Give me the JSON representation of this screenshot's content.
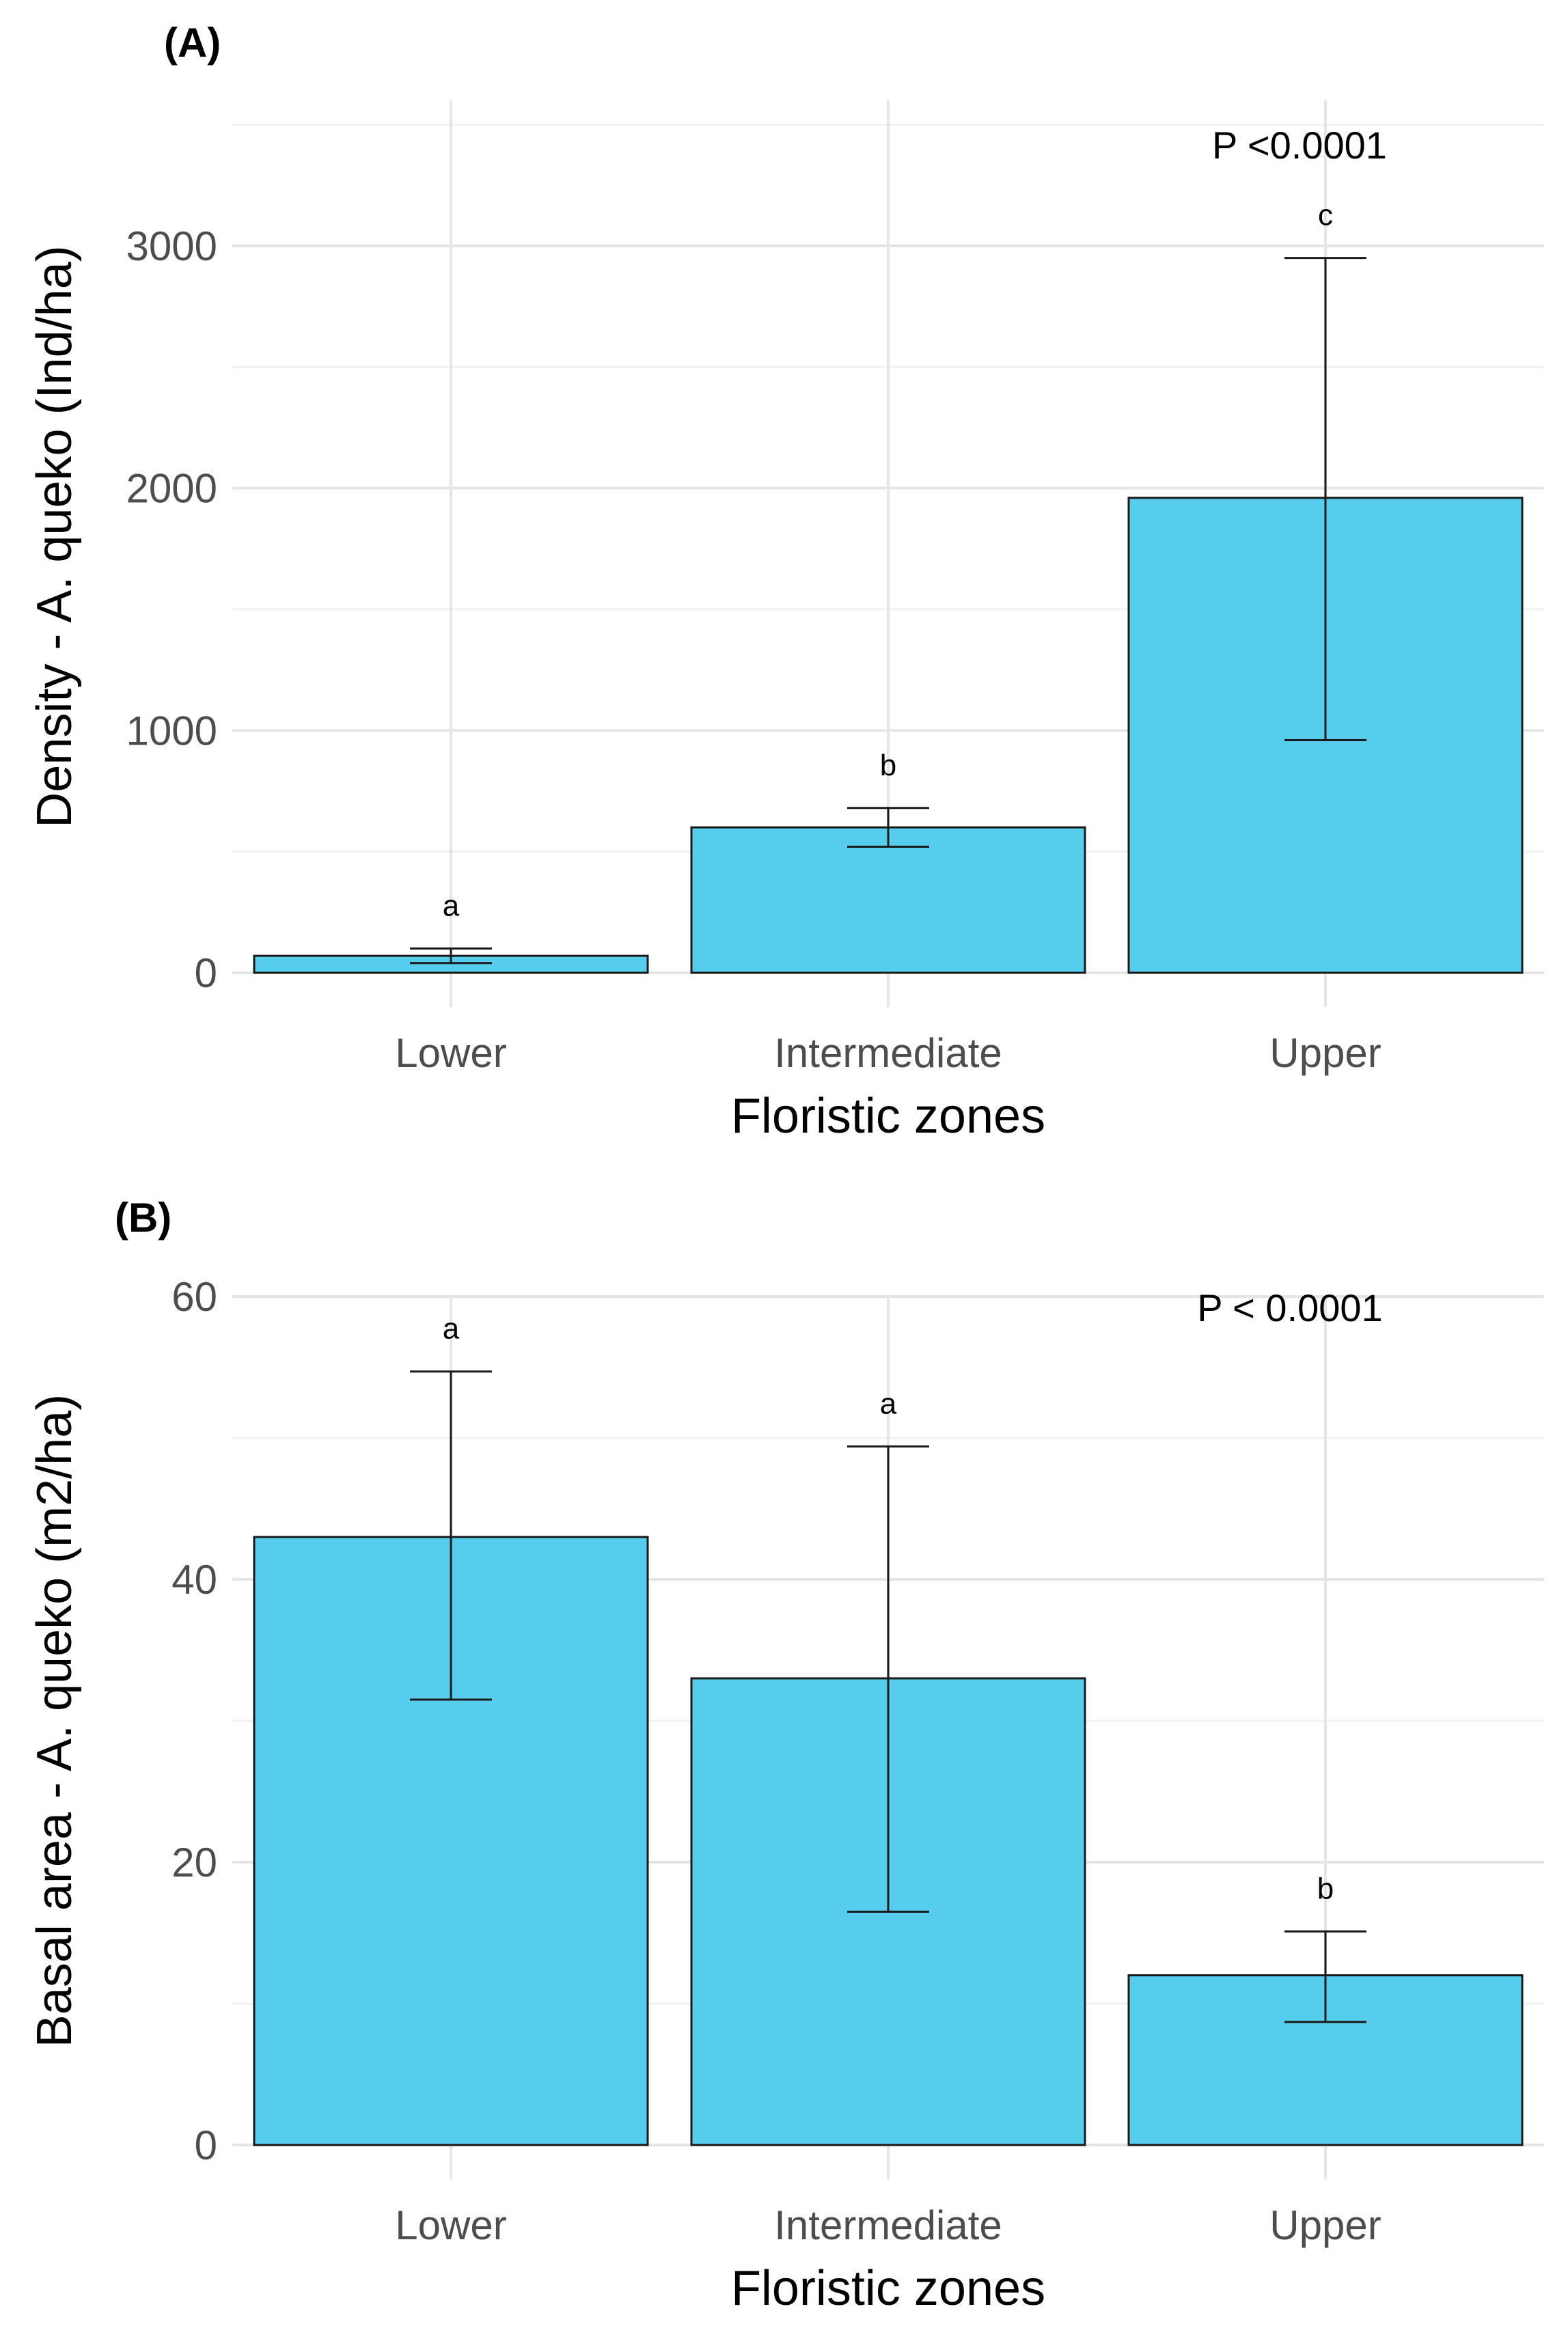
{
  "chart_data": [
    {
      "type": "bar",
      "panel_label": "(A)",
      "title": "",
      "xlabel": "Floristic zones",
      "ylabel": "Density - A. queko (Ind/ha)",
      "categories": [
        "Lower",
        "Intermediate",
        "Upper"
      ],
      "values": [
        70,
        600,
        1960
      ],
      "error_low": [
        40,
        520,
        960
      ],
      "error_high": [
        100,
        680,
        2950
      ],
      "letters": [
        "a",
        "b",
        "c"
      ],
      "ylim": [
        0,
        3600
      ],
      "yticks": [
        0,
        1000,
        2000,
        3000
      ],
      "ytick_labels": [
        "0",
        "1000",
        "2000",
        "3000"
      ],
      "annotation": "P <0.0001",
      "grid": true,
      "bar_color": "#56CDEC"
    },
    {
      "type": "bar",
      "panel_label": "(B)",
      "title": "",
      "xlabel": "Floristic zones",
      "ylabel": "Basal area - A. queko (m2/ha)",
      "categories": [
        "Lower",
        "Intermediate",
        "Upper"
      ],
      "values": [
        43,
        33,
        12
      ],
      "error_low": [
        31.5,
        16.5,
        8.7
      ],
      "error_high": [
        54.7,
        49.4,
        15.1
      ],
      "letters": [
        "a",
        "a",
        "b"
      ],
      "ylim": [
        0,
        60
      ],
      "yticks": [
        0,
        20,
        40,
        60
      ],
      "ytick_labels": [
        "0",
        "20",
        "40",
        "60"
      ],
      "annotation": "P < 0.0001",
      "grid": true,
      "bar_color": "#56CDEC"
    }
  ]
}
